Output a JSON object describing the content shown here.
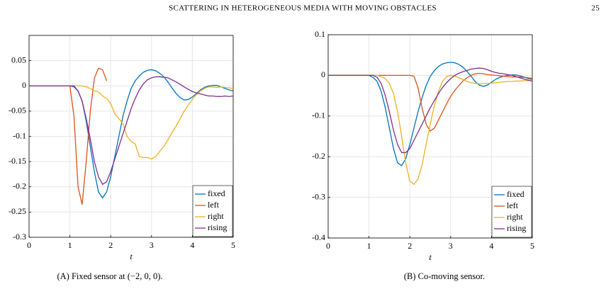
{
  "header": {
    "title": "SCATTERING IN HETEROGENEOUS MEDIA WITH MOVING OBSTACLES",
    "page": "25"
  },
  "chart_data": [
    {
      "type": "line",
      "caption": "(A) Fixed sensor at (−2, 0, 0).",
      "xlabel": "t",
      "x": [
        0,
        0.1,
        0.2,
        0.3,
        0.4,
        0.5,
        0.6,
        0.7,
        0.8,
        0.9,
        1,
        1.1,
        1.2,
        1.3,
        1.4,
        1.5,
        1.6,
        1.7,
        1.8,
        1.9,
        2,
        2.1,
        2.2,
        2.3,
        2.4,
        2.5,
        2.6,
        2.7,
        2.8,
        2.9,
        3,
        3.1,
        3.2,
        3.3,
        3.4,
        3.5,
        3.6,
        3.7,
        3.8,
        3.9,
        4,
        4.1,
        4.2,
        4.3,
        4.4,
        4.5,
        4.6,
        4.7,
        4.8,
        4.9,
        5
      ],
      "xlim": [
        0,
        5
      ],
      "xticks": [
        0,
        1,
        2,
        3,
        4,
        5
      ],
      "ylim": [
        -0.3,
        0.1
      ],
      "yticks": [
        -0.3,
        -0.25,
        -0.2,
        -0.15,
        -0.1,
        -0.05,
        0,
        0.05
      ],
      "grid": true,
      "legend": "lower right",
      "series": [
        {
          "name": "fixed",
          "color": "#0072bd",
          "values": [
            0,
            0,
            0,
            0,
            0,
            0,
            0,
            0,
            0,
            0,
            0,
            -0.002,
            -0.01,
            -0.03,
            -0.07,
            -0.12,
            -0.17,
            -0.21,
            -0.222,
            -0.21,
            -0.18,
            -0.14,
            -0.1,
            -0.06,
            -0.03,
            -0.005,
            0.01,
            0.02,
            0.027,
            0.031,
            0.032,
            0.03,
            0.025,
            0.018,
            0.008,
            -0.004,
            -0.015,
            -0.023,
            -0.028,
            -0.027,
            -0.022,
            -0.015,
            -0.008,
            -0.003,
            0,
            0.001,
            0.001,
            -0.002,
            -0.005,
            -0.008,
            -0.01
          ]
        },
        {
          "name": "left",
          "color": "#d95319",
          "values": [
            0,
            0,
            0,
            0,
            0,
            0,
            0,
            0,
            0,
            0,
            0,
            -0.06,
            -0.2,
            -0.235,
            -0.15,
            -0.05,
            0.015,
            0.035,
            0.032,
            0.01,
            null,
            null,
            null,
            null,
            null,
            null,
            null,
            null,
            null,
            null,
            null,
            null,
            null,
            null,
            null,
            null,
            null,
            null,
            null,
            null,
            null,
            null,
            null,
            null,
            null,
            null,
            null,
            null,
            null,
            null,
            null
          ]
        },
        {
          "name": "right",
          "color": "#edb120",
          "values": [
            0,
            0,
            0,
            0,
            0,
            0,
            0,
            0,
            0,
            0,
            0,
            0,
            0,
            0,
            -0.002,
            -0.005,
            -0.01,
            -0.012,
            -0.02,
            -0.025,
            -0.035,
            -0.055,
            -0.065,
            -0.075,
            -0.1,
            -0.11,
            -0.115,
            -0.14,
            -0.142,
            -0.142,
            -0.145,
            -0.14,
            -0.13,
            -0.12,
            -0.107,
            -0.093,
            -0.08,
            -0.065,
            -0.05,
            -0.038,
            -0.027,
            -0.017,
            -0.01,
            -0.005,
            -0.002,
            -0.002,
            -0.003,
            -0.002,
            -0.003,
            -0.004,
            -0.005
          ]
        },
        {
          "name": "rising",
          "color": "#7e2f8e",
          "values": [
            0,
            0,
            0,
            0,
            0,
            0,
            0,
            0,
            0,
            0,
            0,
            0,
            -0.01,
            -0.03,
            -0.065,
            -0.105,
            -0.15,
            -0.18,
            -0.195,
            -0.19,
            -0.17,
            -0.145,
            -0.12,
            -0.095,
            -0.07,
            -0.045,
            -0.025,
            -0.008,
            0.004,
            0.012,
            0.016,
            0.018,
            0.018,
            0.017,
            0.016,
            0.012,
            0.008,
            0.003,
            -0.002,
            -0.007,
            -0.011,
            -0.014,
            -0.016,
            -0.018,
            -0.02,
            -0.02,
            -0.021,
            -0.021,
            -0.02,
            -0.021,
            -0.02
          ]
        }
      ]
    },
    {
      "type": "line",
      "caption": "(B) Co-moving sensor.",
      "xlabel": "t",
      "x": [
        0,
        0.1,
        0.2,
        0.3,
        0.4,
        0.5,
        0.6,
        0.7,
        0.8,
        0.9,
        1,
        1.1,
        1.2,
        1.3,
        1.4,
        1.5,
        1.6,
        1.7,
        1.8,
        1.9,
        2,
        2.1,
        2.2,
        2.3,
        2.4,
        2.5,
        2.6,
        2.7,
        2.8,
        2.9,
        3,
        3.1,
        3.2,
        3.3,
        3.4,
        3.5,
        3.6,
        3.7,
        3.8,
        3.9,
        4,
        4.1,
        4.2,
        4.3,
        4.4,
        4.5,
        4.6,
        4.7,
        4.8,
        4.9,
        5
      ],
      "xlim": [
        0,
        5
      ],
      "xticks": [
        0,
        1,
        2,
        3,
        4,
        5
      ],
      "ylim": [
        -0.4,
        0.1
      ],
      "yticks": [
        -0.4,
        -0.3,
        -0.2,
        -0.1,
        0,
        0.1
      ],
      "grid": true,
      "legend": "lower right",
      "series": [
        {
          "name": "fixed",
          "color": "#0072bd",
          "values": [
            0,
            0,
            0,
            0,
            0,
            0,
            0,
            0,
            0,
            0,
            0,
            -0.005,
            -0.015,
            -0.04,
            -0.08,
            -0.13,
            -0.18,
            -0.215,
            -0.222,
            -0.205,
            -0.17,
            -0.13,
            -0.09,
            -0.055,
            -0.025,
            -0.003,
            0.012,
            0.022,
            0.028,
            0.031,
            0.032,
            0.031,
            0.027,
            0.02,
            0.01,
            -0.002,
            -0.015,
            -0.024,
            -0.027,
            -0.024,
            -0.017,
            -0.01,
            -0.005,
            -0.002,
            0,
            0.001,
            0.001,
            -0.001,
            -0.004,
            -0.008,
            -0.01
          ]
        },
        {
          "name": "left",
          "color": "#d95319",
          "values": [
            0,
            0,
            0,
            0,
            0,
            0,
            0,
            0,
            0,
            0,
            0,
            0,
            0,
            0,
            0,
            0,
            0,
            0,
            0,
            0,
            0,
            -0.002,
            -0.03,
            -0.08,
            -0.12,
            -0.137,
            -0.13,
            -0.11,
            -0.09,
            -0.07,
            -0.052,
            -0.037,
            -0.025,
            -0.014,
            -0.006,
            0,
            0.004,
            0.005,
            0.004,
            0.002,
            0.001,
            0,
            -0.001,
            -0.002,
            -0.003,
            -0.004,
            -0.004,
            -0.004,
            -0.005,
            -0.006,
            -0.007
          ]
        },
        {
          "name": "right",
          "color": "#edb120",
          "values": [
            0,
            0,
            0,
            0,
            0,
            0,
            0,
            0,
            0,
            0,
            0,
            0,
            0,
            -0.003,
            -0.008,
            -0.02,
            -0.045,
            -0.09,
            -0.15,
            -0.215,
            -0.26,
            -0.268,
            -0.255,
            -0.22,
            -0.17,
            -0.12,
            -0.075,
            -0.04,
            -0.015,
            -0.003,
            0,
            -0.002,
            -0.006,
            -0.01,
            -0.015,
            -0.018,
            -0.02,
            -0.021,
            -0.02,
            -0.02,
            -0.019,
            -0.018,
            -0.017,
            -0.016,
            -0.015,
            -0.015,
            -0.014,
            -0.014,
            -0.013,
            -0.013,
            -0.013
          ]
        },
        {
          "name": "rising",
          "color": "#7e2f8e",
          "values": [
            0,
            0,
            0,
            0,
            0,
            0,
            0,
            0,
            0,
            0,
            0,
            0,
            -0.005,
            -0.02,
            -0.05,
            -0.09,
            -0.135,
            -0.17,
            -0.19,
            -0.19,
            -0.18,
            -0.16,
            -0.14,
            -0.12,
            -0.1,
            -0.08,
            -0.062,
            -0.045,
            -0.03,
            -0.018,
            -0.008,
            0,
            0.005,
            0.009,
            0.012,
            0.015,
            0.017,
            0.018,
            0.017,
            0.014,
            0.01,
            0.007,
            0.005,
            0.004,
            0.002,
            0,
            -0.003,
            -0.006,
            -0.009,
            -0.012,
            -0.014
          ]
        }
      ]
    }
  ]
}
